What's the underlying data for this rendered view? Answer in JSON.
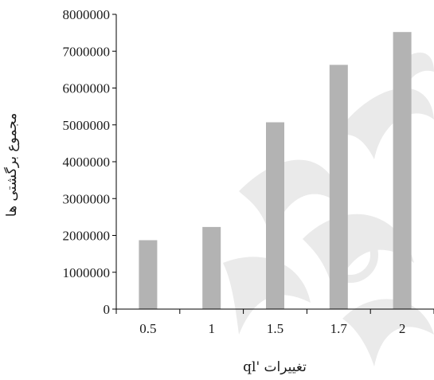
{
  "chart_data": {
    "type": "bar",
    "categories": [
      "0.5",
      "1",
      "1.5",
      "1.7",
      "2"
    ],
    "values": [
      1870000,
      2230000,
      5070000,
      6630000,
      7520000
    ],
    "xlabel": "تغییرات 'ql",
    "ylabel": "مجموع برگشتی ها",
    "ylim": [
      0,
      8000000
    ],
    "yticks": [
      0,
      1000000,
      2000000,
      3000000,
      4000000,
      5000000,
      6000000,
      7000000,
      8000000
    ],
    "ytick_labels": [
      "0",
      "1000000",
      "2000000",
      "3000000",
      "4000000",
      "5000000",
      "6000000",
      "7000000",
      "8000000"
    ],
    "grid": false,
    "legend": "none",
    "colors": {
      "bar": "#b3b3b3",
      "axis": "#000000",
      "watermark": "#d9d9d9"
    }
  }
}
